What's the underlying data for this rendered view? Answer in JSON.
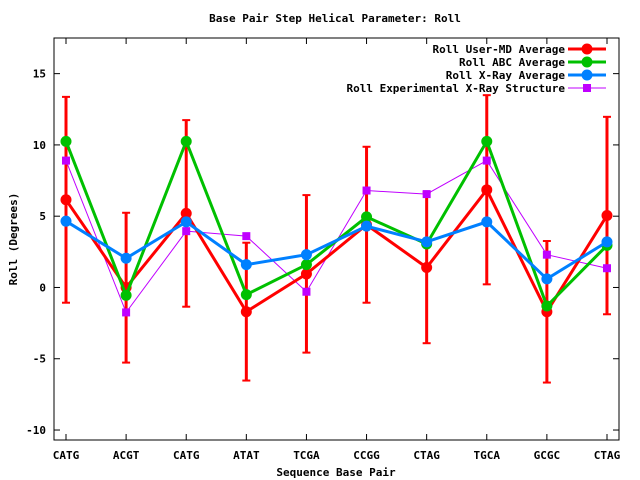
{
  "chart_data": {
    "type": "line",
    "title": "Base Pair Step Helical Parameter: Roll",
    "xlabel": "Sequence Base Pair",
    "ylabel": "Roll (Degrees)",
    "categories": [
      "CATG",
      "ACGT",
      "CATG",
      "ATAT",
      "TCGA",
      "CCGG",
      "CTAG",
      "TGCA",
      "GCGC",
      "CTAG"
    ],
    "ylim": [
      -10.7,
      17.5
    ],
    "yticks": [
      -10,
      -5,
      0,
      5,
      10,
      15
    ],
    "ytick_labels": [
      "-10",
      "-5",
      "0",
      "5",
      "10",
      "15"
    ],
    "grid": false,
    "legend_position": "top-right",
    "series": [
      {
        "name": "Roll User-MD Average",
        "color": "#ff0000",
        "marker": "circle",
        "values": [
          6.15,
          0.0,
          5.2,
          -1.7,
          0.95,
          4.4,
          1.4,
          6.85,
          -1.7,
          5.05
        ],
        "error_low": [
          -1.07,
          -5.27,
          -1.35,
          -6.53,
          -4.57,
          -1.07,
          -3.91,
          0.22,
          -6.67,
          -1.88
        ],
        "error_high": [
          13.37,
          5.24,
          11.74,
          3.14,
          6.48,
          9.87,
          6.69,
          13.49,
          3.26,
          11.97
        ]
      },
      {
        "name": "Roll ABC Average",
        "color": "#00c000",
        "marker": "circle",
        "values": [
          10.25,
          -0.55,
          10.25,
          -0.5,
          1.6,
          4.95,
          3.05,
          10.25,
          -1.3,
          2.95
        ]
      },
      {
        "name": "Roll X-Ray Average",
        "color": "#0080ff",
        "marker": "circle",
        "values": [
          4.65,
          2.05,
          4.6,
          1.6,
          2.3,
          4.3,
          3.2,
          4.6,
          0.6,
          3.2
        ]
      },
      {
        "name": "Roll Experimental X-Ray Structure",
        "color": "#c000ff",
        "marker": "square",
        "values": [
          8.9,
          -1.75,
          3.95,
          3.6,
          -0.3,
          6.8,
          6.55,
          8.9,
          2.3,
          1.35
        ]
      }
    ]
  }
}
